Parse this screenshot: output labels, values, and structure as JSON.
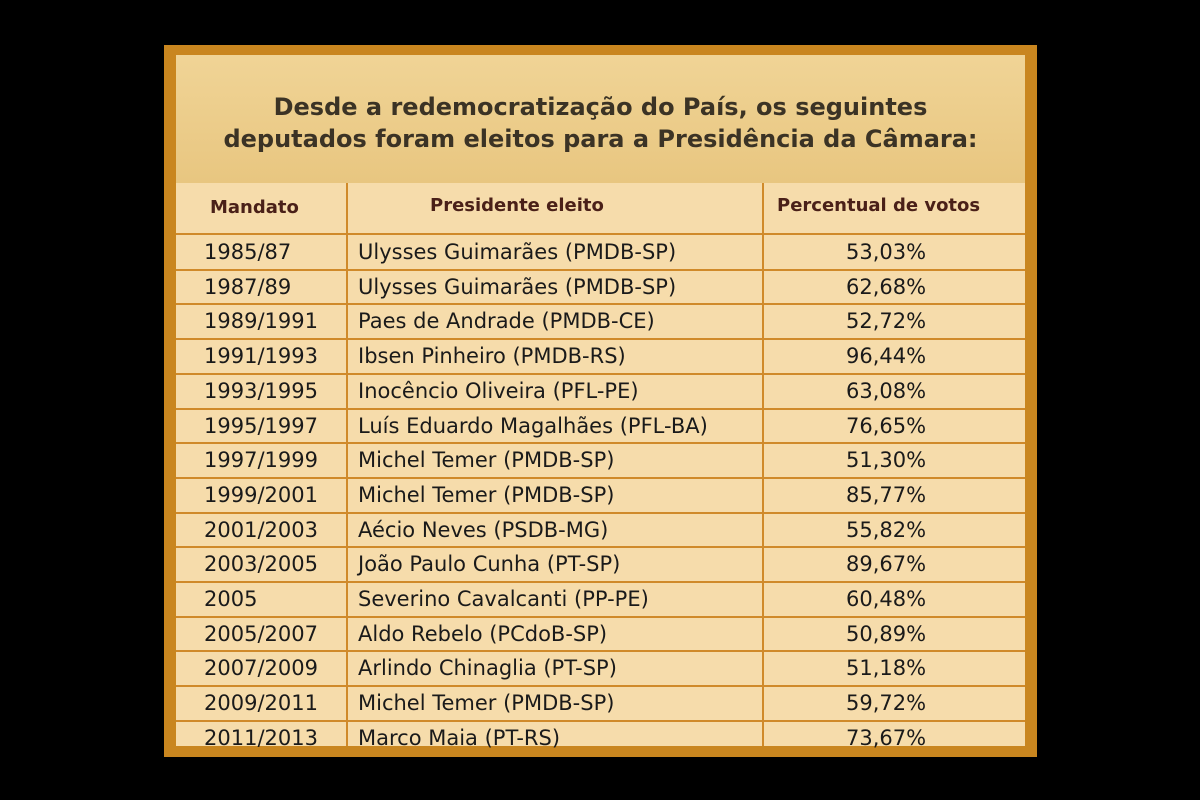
{
  "title": {
    "line1": "Desde a redemocratização do País, os seguintes",
    "line2": "deputados foram eleitos para a Presidência da Câmara:"
  },
  "table": {
    "headers": [
      "Mandato",
      "Presidente eleito",
      "Percentual de votos"
    ],
    "rows": [
      [
        "1985/87",
        "Ulysses Guimarães (PMDB-SP)",
        "53,03%"
      ],
      [
        "1987/89",
        "Ulysses Guimarães (PMDB-SP)",
        "62,68%"
      ],
      [
        "1989/1991",
        "Paes de Andrade (PMDB-CE)",
        "52,72%"
      ],
      [
        "1991/1993",
        "Ibsen Pinheiro (PMDB-RS)",
        "96,44%"
      ],
      [
        "1993/1995",
        "Inocêncio Oliveira (PFL-PE)",
        "63,08%"
      ],
      [
        "1995/1997",
        "Luís Eduardo Magalhães (PFL-BA)",
        "76,65%"
      ],
      [
        "1997/1999",
        "Michel Temer (PMDB-SP)",
        "51,30%"
      ],
      [
        "1999/2001",
        "Michel Temer (PMDB-SP)",
        "85,77%"
      ],
      [
        "2001/2003",
        "Aécio Neves (PSDB-MG)",
        "55,82%"
      ],
      [
        "2003/2005",
        "João Paulo Cunha (PT-SP)",
        "89,67%"
      ],
      [
        "2005",
        "Severino Cavalcanti (PP-PE)",
        "60,48%"
      ],
      [
        "2005/2007",
        "Aldo Rebelo (PCdoB-SP)",
        "50,89%"
      ],
      [
        "2007/2009",
        "Arlindo Chinaglia (PT-SP)",
        "51,18%"
      ],
      [
        "2009/2011",
        "Michel Temer (PMDB-SP)",
        "59,72%"
      ],
      [
        "2011/2013",
        "Marco Maia (PT-RS)",
        "73,67%"
      ]
    ]
  },
  "colors": {
    "background": "#000000",
    "frame": "#c9861f",
    "panel": "#f3d9a3",
    "grid": "#d08a2a",
    "header_text": "#4a2018"
  }
}
